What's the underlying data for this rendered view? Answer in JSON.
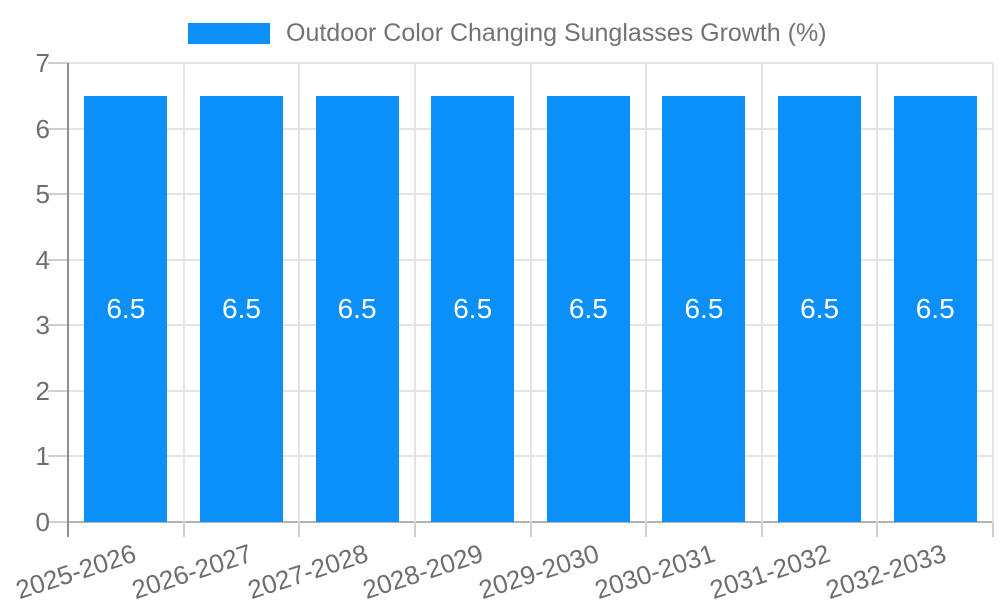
{
  "chart_data": {
    "type": "bar",
    "title": "Outdoor Color Changing Sunglasses Growth (%)",
    "categories": [
      "2025-2026",
      "2026-2027",
      "2027-2028",
      "2028-2029",
      "2029-2030",
      "2030-2031",
      "2031-2032",
      "2032-2033"
    ],
    "values": [
      6.5,
      6.5,
      6.5,
      6.5,
      6.5,
      6.5,
      6.5,
      6.5
    ],
    "bar_labels": [
      "6.5",
      "6.5",
      "6.5",
      "6.5",
      "6.5",
      "6.5",
      "6.5",
      "6.5"
    ],
    "xlabel": "",
    "ylabel": "",
    "ylim": [
      0,
      7
    ],
    "yticks": [
      0,
      1,
      2,
      3,
      4,
      5,
      6,
      7
    ],
    "grid": true,
    "legend_position": "top",
    "colors": {
      "bar": "#0b8ff8",
      "bar_label": "#ffffff",
      "axis_text": "#6e6e6e",
      "title_text": "#737373",
      "gridline": "#e4e4e4",
      "axis_line": "#8f8f8f",
      "baseline": "#b3b3b3",
      "tick": "#cfcfcf"
    }
  }
}
